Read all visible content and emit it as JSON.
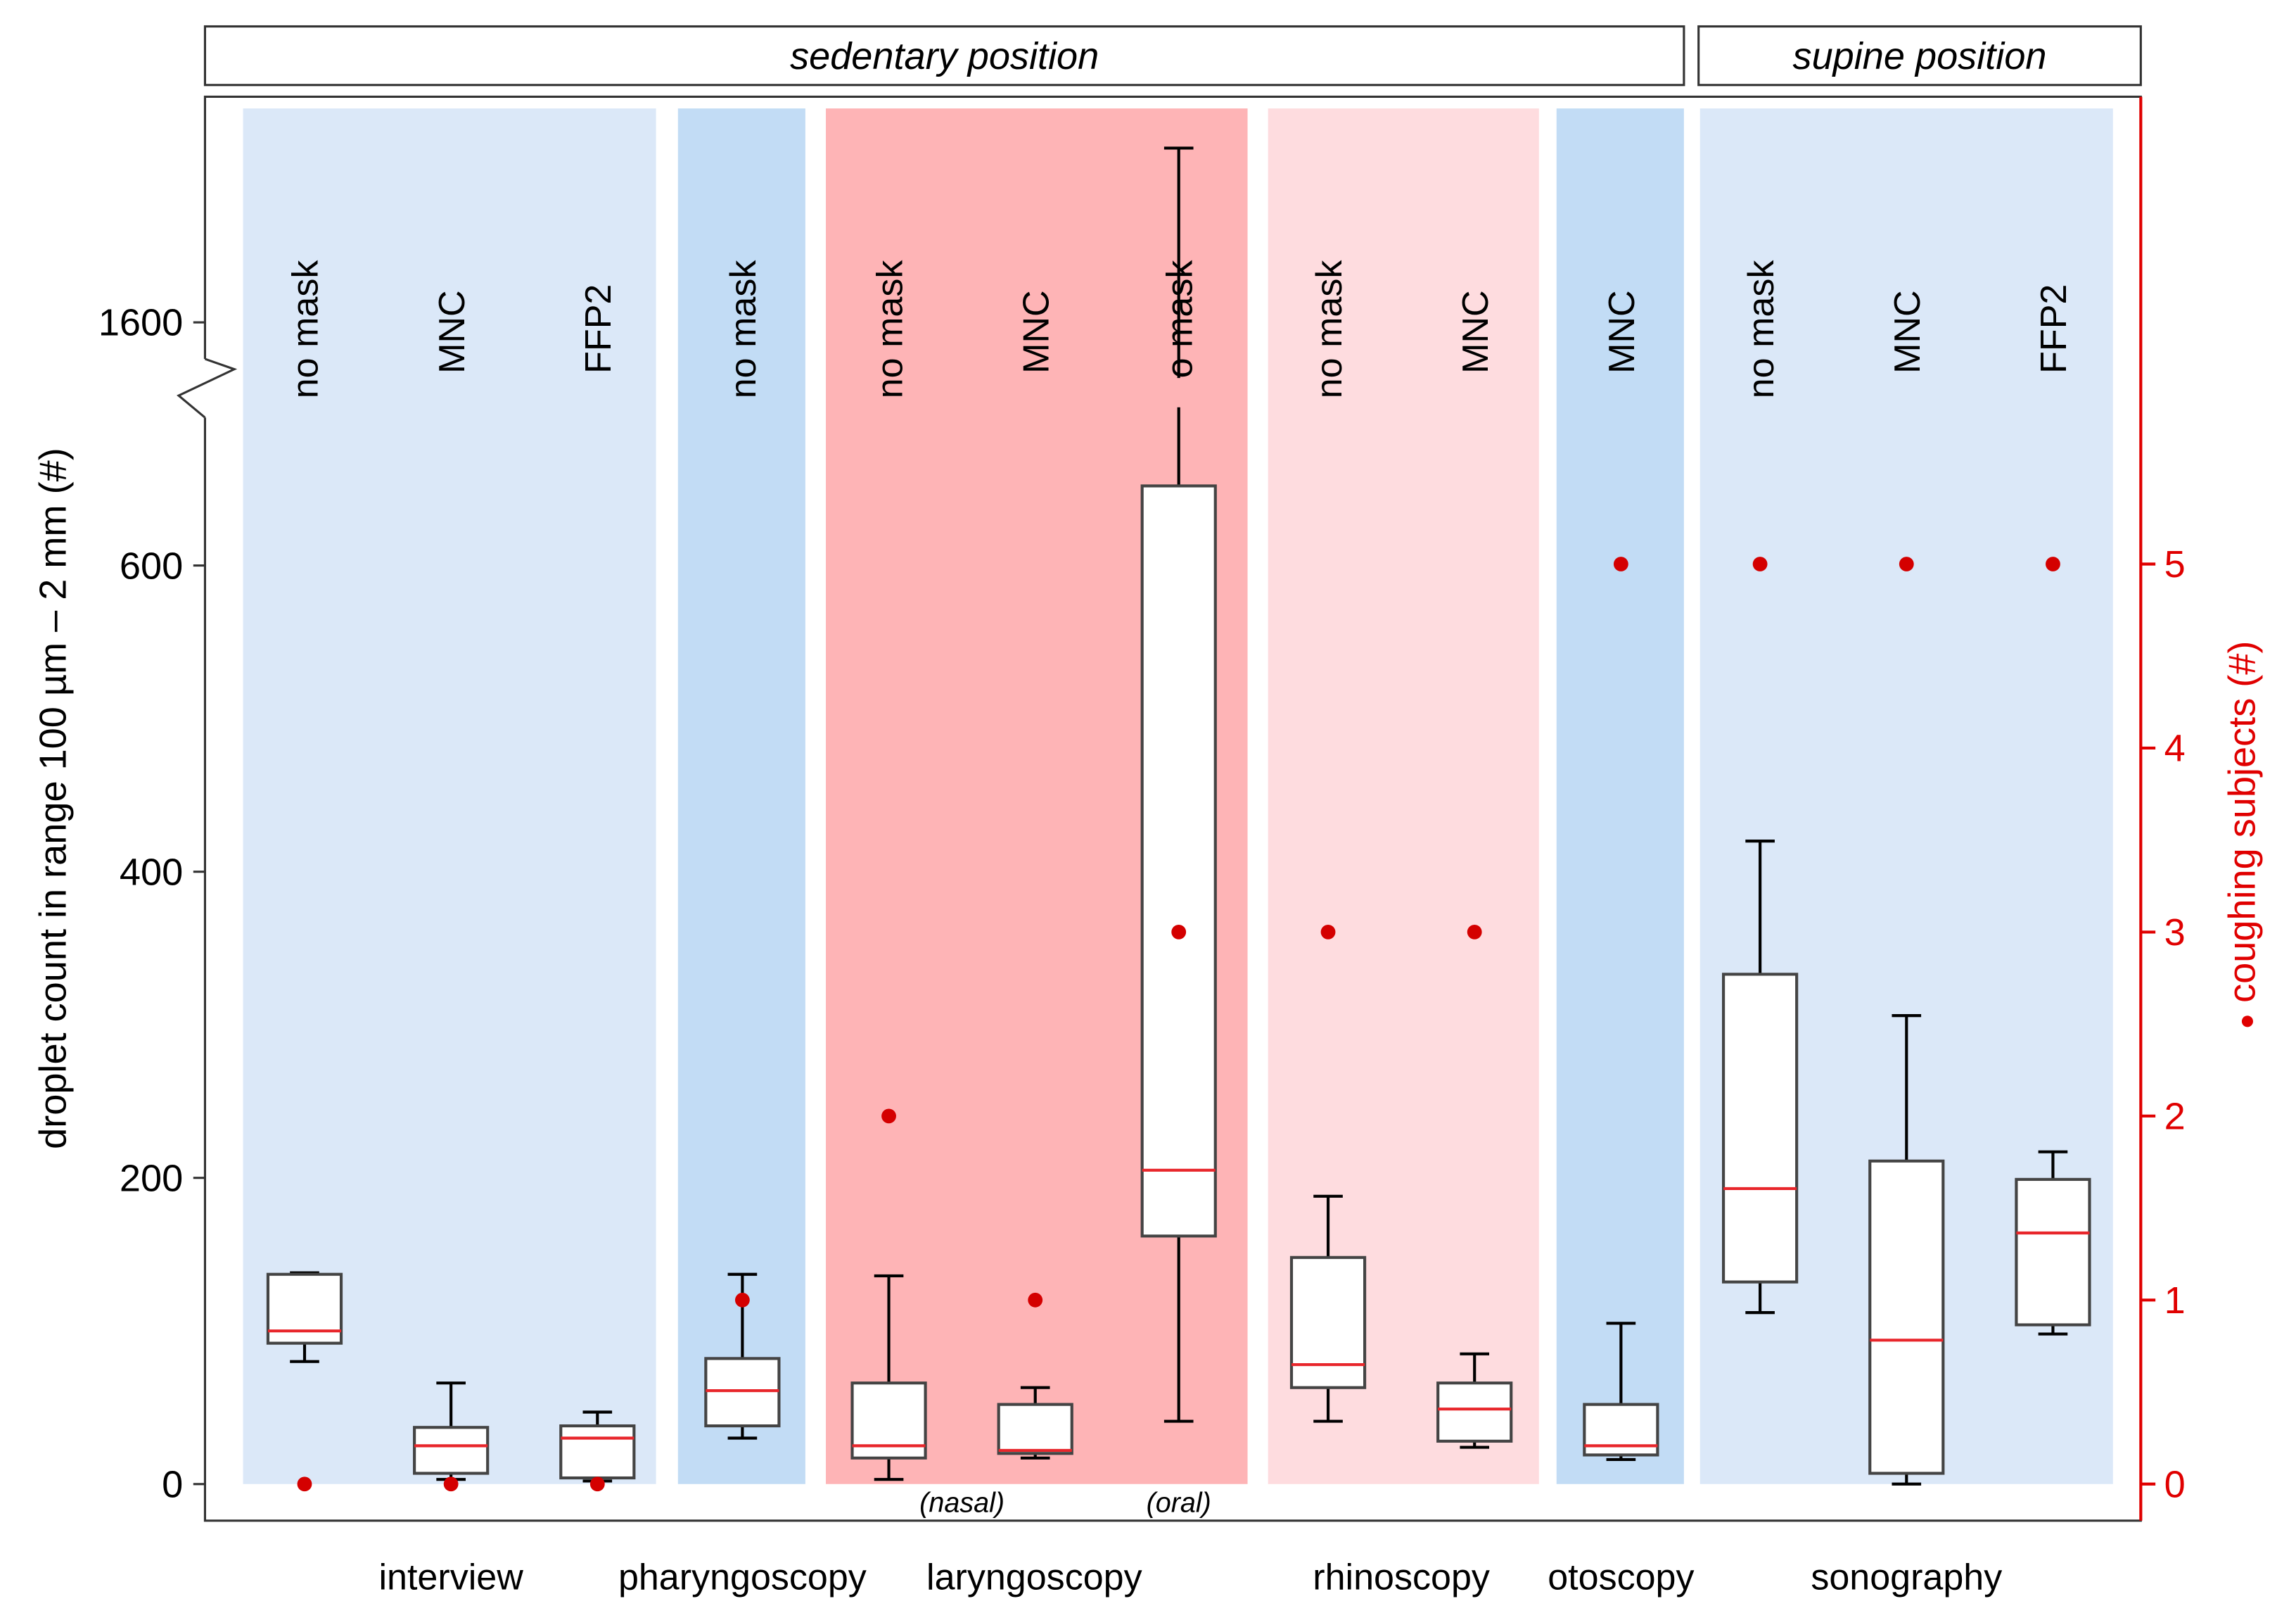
{
  "chart_data": {
    "type": "box",
    "panels": [
      {
        "label": "sedentary position"
      },
      {
        "label": "supine position"
      }
    ],
    "ylabel": "droplet count in range 100 µm – 2 mm (#)",
    "y2label": "coughing subjects (#)",
    "y2_marker": "●",
    "yticks": [
      0,
      200,
      400,
      600,
      1600
    ],
    "y_axis_break": [
      600,
      1500
    ],
    "ylim": [
      0,
      1750
    ],
    "y2ticks": [
      0,
      1,
      2,
      3,
      4,
      5
    ],
    "y2lim": [
      0,
      5
    ],
    "colors": {
      "light_blue": "#dbe8f8",
      "mid_blue": "#c2dcf5",
      "red": "#feb4b6",
      "pink": "#fedcdf",
      "median": "#e8262b",
      "cough": "#d40000",
      "right_axis": "#e00000"
    },
    "procedures": [
      {
        "name": "interview",
        "color": "light_blue"
      },
      {
        "name": "pharyngoscopy",
        "color": "mid_blue"
      },
      {
        "name": "laryngoscopy",
        "color": "red"
      },
      {
        "name": "rhinoscopy",
        "color": "pink"
      },
      {
        "name": "otoscopy",
        "color": "mid_blue"
      },
      {
        "name": "sonography",
        "color": "light_blue"
      }
    ],
    "groups": [
      {
        "procedure": "interview",
        "label": "no mask",
        "whisker_low": 80,
        "q1": 92,
        "median": 100,
        "q3": 137,
        "whisker_high": 138,
        "coughing": 0
      },
      {
        "procedure": "interview",
        "label": "MNC",
        "whisker_low": 3,
        "q1": 7,
        "median": 25,
        "q3": 37,
        "whisker_high": 66,
        "coughing": 0
      },
      {
        "procedure": "interview",
        "label": "FFP2",
        "whisker_low": 2,
        "q1": 4,
        "median": 30,
        "q3": 38,
        "whisker_high": 47,
        "coughing": 0
      },
      {
        "procedure": "pharyngoscopy",
        "label": "no mask",
        "whisker_low": 30,
        "q1": 38,
        "median": 61,
        "q3": 82,
        "whisker_high": 137,
        "coughing": 1
      },
      {
        "procedure": "laryngoscopy",
        "label": "no mask",
        "sublabel": "(nasal)",
        "whisker_low": 3,
        "q1": 17,
        "median": 25,
        "q3": 66,
        "whisker_high": 136,
        "coughing": 2
      },
      {
        "procedure": "laryngoscopy",
        "label": "MNC",
        "whisker_low": 17,
        "q1": 20,
        "median": 22,
        "q3": 52,
        "whisker_high": 63,
        "coughing": 1
      },
      {
        "procedure": "laryngoscopy",
        "label": "no mask",
        "sublabel": "(oral)",
        "whisker_low": 41,
        "q1": 162,
        "median": 205,
        "q3": 652,
        "whisker_high": 1750,
        "coughing": 3
      },
      {
        "procedure": "rhinoscopy",
        "label": "no mask",
        "whisker_low": 41,
        "q1": 63,
        "median": 78,
        "q3": 148,
        "whisker_high": 188,
        "coughing": 3
      },
      {
        "procedure": "rhinoscopy",
        "label": "MNC",
        "whisker_low": 24,
        "q1": 28,
        "median": 49,
        "q3": 66,
        "whisker_high": 85,
        "coughing": 3
      },
      {
        "procedure": "otoscopy",
        "label": "MNC",
        "whisker_low": 16,
        "q1": 19,
        "median": 25,
        "q3": 52,
        "whisker_high": 105,
        "coughing": 5
      },
      {
        "procedure": "sonography",
        "label": "no mask",
        "whisker_low": 112,
        "q1": 132,
        "median": 193,
        "q3": 333,
        "whisker_high": 420,
        "coughing": 5
      },
      {
        "procedure": "sonography",
        "label": "MNC",
        "whisker_low": 0,
        "q1": 7,
        "median": 94,
        "q3": 211,
        "whisker_high": 306,
        "coughing": 5
      },
      {
        "procedure": "sonography",
        "label": "FFP2",
        "whisker_low": 98,
        "q1": 104,
        "median": 164,
        "q3": 199,
        "whisker_high": 217,
        "coughing": 5
      }
    ]
  }
}
